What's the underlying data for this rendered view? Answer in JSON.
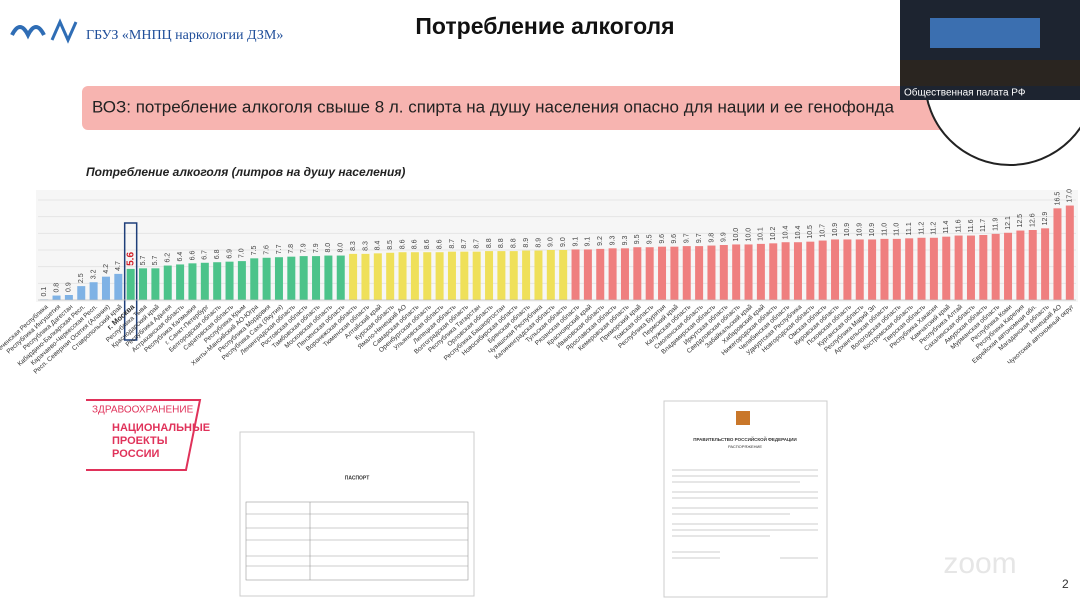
{
  "header": {
    "org": "ГБУЗ «МНПЦ наркологии ДЗМ»",
    "title": "Потребление алкоголя"
  },
  "banner": "ВОЗ: потребление алкоголя свыше 8 л. спирта на душу населения опасно для нации и ее генофонда",
  "chart_data": {
    "type": "bar",
    "title": "Потребление алкоголя (литров на душу населения)",
    "categories": [
      "Чеченская Республика",
      "Республика Ингушетия",
      "Республика Дагестан",
      "Кабардино-Балкарская Респ.",
      "Карачаево-Черкесская Респ.",
      "Респ. Северная Осетия (Алания)",
      "Ставропольский край",
      "г. Москва",
      "Республика Тыва",
      "Краснодарский край",
      "Республика Адыгея",
      "Астраханская область",
      "Республика Калмыкия",
      "г. Санкт-Петербург",
      "Белгородская область",
      "Саратовская область",
      "Республика Крым",
      "Ханты-Мансийский АО-Югра",
      "Республика Мордовия",
      "Республика Саха (Якутия)",
      "Ленинградская область",
      "Ростовская область",
      "Тамбовская область",
      "Московская область",
      "Пензенская область",
      "Воронежская область",
      "Тюменская область",
      "Алтайский край",
      "Курская область",
      "Ямало-Ненецкий АО",
      "Самарская область",
      "Оренбургская область",
      "Ульяновская область",
      "Липецкая область",
      "Волгоградская область",
      "Республика Татарстан",
      "Орловская область",
      "Республика Башкортостан",
      "Новосибирская область",
      "Брянская область",
      "Чувашская Республика",
      "Калининградская область",
      "Тульская область",
      "Рязанская область",
      "Красноярский край",
      "Ивановская область",
      "Ярославская область",
      "Кемеровская область",
      "Приморский край",
      "Томская область",
      "Республика Бурятия",
      "Пермский край",
      "Калужская область",
      "Смоленская область",
      "Владимирская область",
      "Иркутская область",
      "Свердловская область",
      "Забайкальский край",
      "Хабаровский край",
      "Нижегородская область",
      "Челябинская область",
      "Удмуртская Республика",
      "Новгородская область",
      "Омская область",
      "Кировская область",
      "Псковская область",
      "Курганская область",
      "Республика Марий Эл",
      "Архангельская область",
      "Вологодская область",
      "Костромская область",
      "Тверская область",
      "Республика Хакасия",
      "Камчатский край",
      "Республика Алтай",
      "Сахалинская область",
      "Амурская область",
      "Мурманская область",
      "Республика Коми",
      "Республика Карелия",
      "Еврейская автономная обл.",
      "Магаданская область",
      "Ненецкий АО",
      "Чукотский автономный округ"
    ],
    "values": [
      0.1,
      0.8,
      0.9,
      2.5,
      3.2,
      4.2,
      4.7,
      5.6,
      5.7,
      5.7,
      6.2,
      6.4,
      6.6,
      6.7,
      6.8,
      6.9,
      7.0,
      7.5,
      7.6,
      7.7,
      7.8,
      7.9,
      7.9,
      8.0,
      8.0,
      8.3,
      8.3,
      8.4,
      8.5,
      8.6,
      8.6,
      8.6,
      8.6,
      8.7,
      8.7,
      8.7,
      8.8,
      8.8,
      8.8,
      8.9,
      8.9,
      9.0,
      9.0,
      9.1,
      9.1,
      9.2,
      9.3,
      9.3,
      9.5,
      9.5,
      9.6,
      9.6,
      9.7,
      9.7,
      9.8,
      9.9,
      10.0,
      10.0,
      10.1,
      10.2,
      10.4,
      10.4,
      10.5,
      10.7,
      10.9,
      10.9,
      10.9,
      10.9,
      11.0,
      11.0,
      11.1,
      11.2,
      11.2,
      11.4,
      11.6,
      11.6,
      11.7,
      11.9,
      12.1,
      12.5,
      12.6,
      12.9,
      16.5,
      17.0
    ],
    "value_labels": [
      "0.1",
      "0.8",
      "0.9",
      "2.5",
      "3.2",
      "4.2",
      "4.7",
      "5.6",
      "5.7",
      "5.7",
      "6.2",
      "6.4",
      "6.6",
      "6.7",
      "6.8",
      "6.9",
      "7.0",
      "7.5",
      "7.6",
      "7.7",
      "7.8",
      "7.9",
      "7.9",
      "8.0",
      "8.0",
      "8.3",
      "8.3",
      "8.4",
      "8.5",
      "8.6",
      "8.6",
      "8.6",
      "8.6",
      "8.7",
      "8.7",
      "8.7",
      "8.8",
      "8.8",
      "8.8",
      "8.9",
      "8.9",
      "9.0",
      "9.0",
      "9.1",
      "9.1",
      "9.2",
      "9.3",
      "9.3",
      "9.5",
      "9.5",
      "9.6",
      "9.6",
      "9.7",
      "9.7",
      "9.8",
      "9.9",
      "10.0",
      "10.0",
      "10.1",
      "10.2",
      "10.4",
      "10.4",
      "10.5",
      "10.7",
      "10.9",
      "10.9",
      "10.9",
      "10.9",
      "11.0",
      "11.0",
      "11.1",
      "11.2",
      "11.2",
      "11.4",
      "11.6",
      "11.6",
      "11.7",
      "11.9",
      "12.1",
      "12.5",
      "12.6",
      "12.9",
      "16.5",
      "17.0"
    ],
    "colors": [
      "#7fb2e5",
      "#7fb2e5",
      "#7fb2e5",
      "#7fb2e5",
      "#7fb2e5",
      "#7fb2e5",
      "#7fb2e5",
      "#4cc38a",
      "#4cc38a",
      "#4cc38a",
      "#4cc38a",
      "#4cc38a",
      "#4cc38a",
      "#4cc38a",
      "#4cc38a",
      "#4cc38a",
      "#4cc38a",
      "#4cc38a",
      "#4cc38a",
      "#4cc38a",
      "#4cc38a",
      "#4cc38a",
      "#4cc38a",
      "#4cc38a",
      "#4cc38a",
      "#efe05a",
      "#efe05a",
      "#efe05a",
      "#efe05a",
      "#efe05a",
      "#efe05a",
      "#efe05a",
      "#efe05a",
      "#efe05a",
      "#efe05a",
      "#efe05a",
      "#efe05a",
      "#efe05a",
      "#efe05a",
      "#efe05a",
      "#efe05a",
      "#efe05a",
      "#efe05a",
      "#ef7f7f",
      "#ef7f7f",
      "#ef7f7f",
      "#ef7f7f",
      "#ef7f7f",
      "#ef7f7f",
      "#ef7f7f",
      "#ef7f7f",
      "#ef7f7f",
      "#ef7f7f",
      "#ef7f7f",
      "#ef7f7f",
      "#ef7f7f",
      "#ef7f7f",
      "#ef7f7f",
      "#ef7f7f",
      "#ef7f7f",
      "#ef7f7f",
      "#ef7f7f",
      "#ef7f7f",
      "#ef7f7f",
      "#ef7f7f",
      "#ef7f7f",
      "#ef7f7f",
      "#ef7f7f",
      "#ef7f7f",
      "#ef7f7f",
      "#ef7f7f",
      "#ef7f7f",
      "#ef7f7f",
      "#ef7f7f",
      "#ef7f7f",
      "#ef7f7f",
      "#ef7f7f",
      "#ef7f7f",
      "#ef7f7f",
      "#ef7f7f",
      "#ef7f7f",
      "#ef7f7f",
      "#ef7f7f",
      "#ef7f7f"
    ],
    "highlight": "г. Москва",
    "ylim": [
      0,
      18
    ],
    "grid": true
  },
  "project": {
    "line1": "ЗДРАВООХРАНЕНИЕ",
    "line2": "НАЦИОНАЛЬНЫЕ",
    "line3": "ПРОЕКТЫ",
    "line4": "РОССИИ"
  },
  "doc1": {
    "title": "ПАСПОРТ"
  },
  "doc2": {
    "title": "ПРАВИТЕЛЬСТВО РОССИЙСКОЙ ФЕДЕРАЦИИ",
    "subtitle": "РАСПОРЯЖЕНИЕ"
  },
  "video": {
    "caption": "Общественная палата РФ"
  },
  "watermark": "zoom",
  "page_number": "2"
}
